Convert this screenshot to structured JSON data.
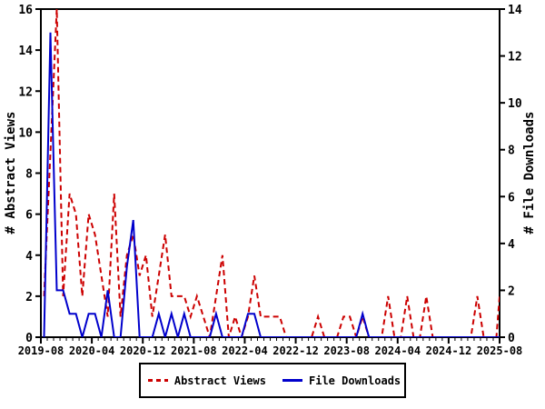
{
  "chart_data": {
    "type": "line",
    "title": "",
    "x_axis": {
      "label": "",
      "tick_labels": [
        "2019-08",
        "2020-04",
        "2020-12",
        "2021-08",
        "2022-04",
        "2022-12",
        "2023-08",
        "2024-04",
        "2024-12",
        "2025-08"
      ],
      "months_start": "2019-08",
      "months_end": "2025-08",
      "n_points": 73,
      "label_every_n_months": 8
    },
    "y_left": {
      "label": "# Abstract Views",
      "min": 0,
      "max": 16,
      "ticks": [
        0,
        2,
        4,
        6,
        8,
        10,
        12,
        14,
        16
      ]
    },
    "y_right": {
      "label": "# File Downloads",
      "min": 0,
      "max": 14,
      "ticks": [
        0,
        2,
        4,
        6,
        8,
        10,
        12,
        14
      ]
    },
    "grid": false,
    "legend_position": "bottom-center",
    "series": [
      {
        "name": "Abstract Views",
        "axis": "left",
        "color": "#cc0000",
        "style": "dashed",
        "values": [
          2,
          9,
          16,
          2,
          7,
          6,
          2,
          6,
          5,
          3,
          1,
          7,
          1,
          4,
          5,
          3,
          4,
          1,
          3,
          5,
          2,
          2,
          2,
          1,
          2,
          1,
          0,
          2,
          4,
          0,
          1,
          0,
          1,
          3,
          1,
          1,
          1,
          1,
          0,
          0,
          0,
          0,
          0,
          1,
          0,
          0,
          0,
          1,
          1,
          0,
          1,
          0,
          0,
          0,
          2,
          0,
          0,
          2,
          0,
          0,
          2,
          0,
          0,
          0,
          0,
          0,
          0,
          0,
          2,
          0,
          0,
          0,
          2
        ]
      },
      {
        "name": "File Downloads",
        "axis": "right",
        "color": "#0000cc",
        "style": "solid",
        "values": [
          0,
          13,
          2,
          2,
          1,
          1,
          0,
          1,
          1,
          0,
          2,
          0,
          0,
          3,
          5,
          0,
          0,
          0,
          1,
          0,
          1,
          0,
          1,
          0,
          0,
          0,
          0,
          1,
          0,
          0,
          0,
          0,
          1,
          1,
          0,
          0,
          0,
          0,
          0,
          0,
          0,
          0,
          0,
          0,
          0,
          0,
          0,
          0,
          0,
          0,
          1,
          0,
          0,
          0,
          0,
          0,
          0,
          0,
          0,
          0,
          0,
          0,
          0,
          0,
          0,
          0,
          0,
          0,
          0,
          0,
          0,
          0,
          0
        ]
      }
    ]
  },
  "colors": {
    "background": "#ffffff",
    "axis": "#000000",
    "text": "#000000"
  }
}
